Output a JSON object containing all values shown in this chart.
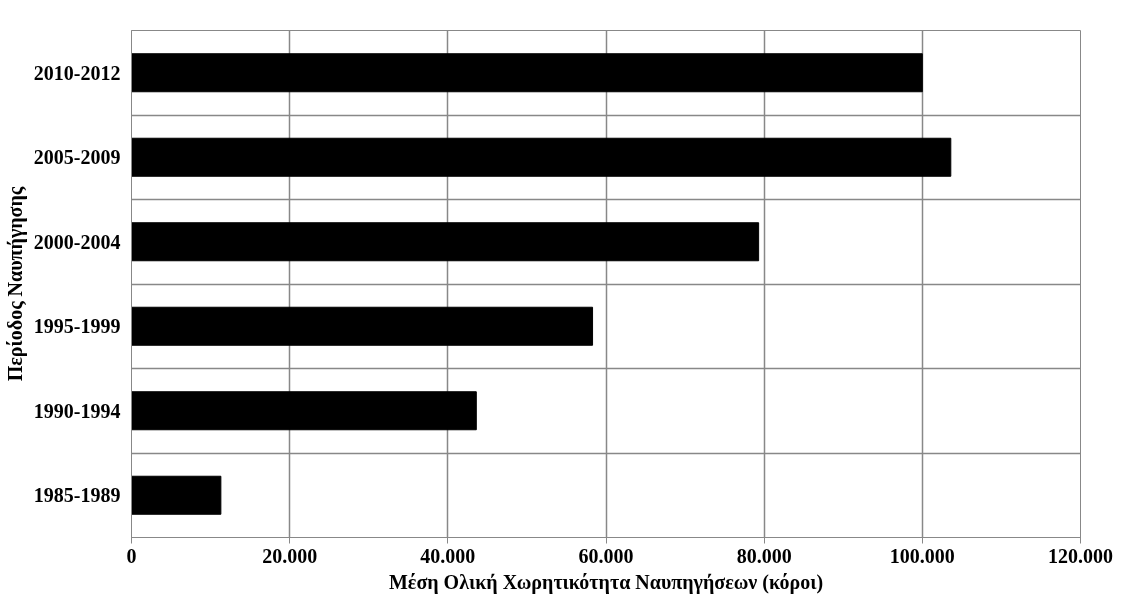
{
  "chart_data": {
    "type": "bar",
    "orientation": "horizontal",
    "xlabel": "Μέση Ολική Χωρητικότητα Ναυπηγήσεων (κόροι)",
    "ylabel": "Περίοδος Ναυπήγησης",
    "categories": [
      "2010-2012",
      "2005-2009",
      "2000-2004",
      "1995-1999",
      "1990-1994",
      "1985-1989"
    ],
    "values": [
      100000,
      103600,
      79300,
      58300,
      43600,
      11300
    ],
    "color": "#000000",
    "xlim": [
      0,
      120000
    ],
    "xticks": [
      0,
      {
        "value": 20000,
        "label": "20.000"
      },
      {
        "value": 40000,
        "label": "40.000"
      },
      {
        "value": 60000,
        "label": "60.000"
      },
      {
        "value": 80000,
        "label": "80.000"
      },
      {
        "value": 100000,
        "label": "100.000"
      },
      {
        "value": 120000,
        "label": "120.000"
      }
    ],
    "grid": true
  }
}
